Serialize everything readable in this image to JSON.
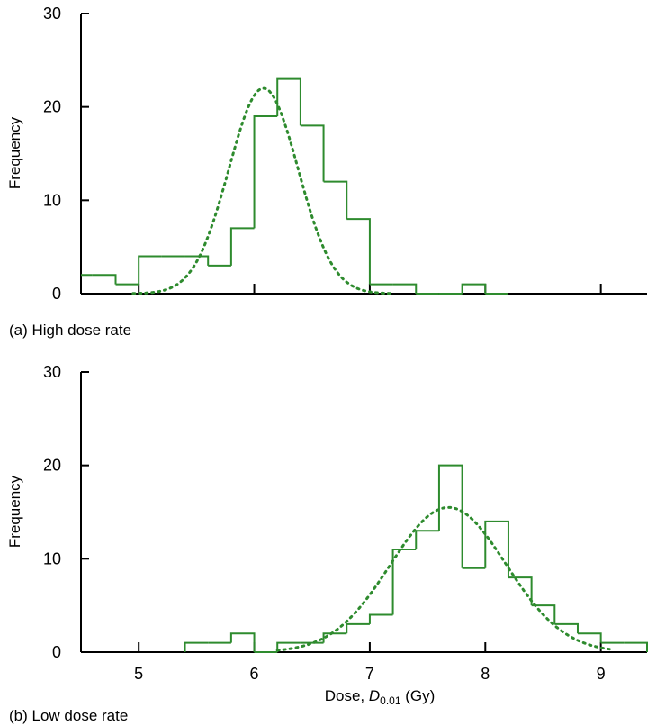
{
  "chart_data": [
    {
      "type": "histogram",
      "caption": "(a) High dose rate",
      "ylabel": "Frequency",
      "xlim": [
        4.5,
        9.4
      ],
      "ylim": [
        0,
        30
      ],
      "xticks": [
        5,
        6,
        7,
        8,
        9
      ],
      "yticks": [
        0,
        10,
        20,
        30
      ],
      "yticklabels": [
        "0",
        "10",
        "20",
        "30"
      ],
      "colors": {
        "histogram": "#2e8b2e",
        "fit": "#2e8b2e"
      },
      "bin_width": 0.2,
      "bins": [
        {
          "start": 4.4,
          "value": 2
        },
        {
          "start": 4.6,
          "value": 2
        },
        {
          "start": 4.8,
          "value": 1
        },
        {
          "start": 5.0,
          "value": 4
        },
        {
          "start": 5.2,
          "value": 4
        },
        {
          "start": 5.4,
          "value": 4
        },
        {
          "start": 5.6,
          "value": 3
        },
        {
          "start": 5.8,
          "value": 7
        },
        {
          "start": 6.0,
          "value": 19
        },
        {
          "start": 6.2,
          "value": 23
        },
        {
          "start": 6.4,
          "value": 18
        },
        {
          "start": 6.6,
          "value": 12
        },
        {
          "start": 6.8,
          "value": 8
        },
        {
          "start": 7.0,
          "value": 1
        },
        {
          "start": 7.2,
          "value": 1
        },
        {
          "start": 7.4,
          "value": 0
        },
        {
          "start": 7.6,
          "value": 0
        },
        {
          "start": 7.8,
          "value": 1
        },
        {
          "start": 8.0,
          "value": 0
        }
      ],
      "fit": {
        "type": "normal",
        "mean": 6.08,
        "sd": 0.3,
        "peak": 22,
        "x_range": [
          4.95,
          7.2
        ]
      }
    },
    {
      "type": "histogram",
      "caption": "(b) Low dose rate",
      "ylabel": "Frequency",
      "xlabel_prefix": "Dose, ",
      "xlabel_var": "D",
      "xlabel_sub": "0.01",
      "xlabel_suffix": " (Gy)",
      "xlim": [
        4.5,
        9.4
      ],
      "ylim": [
        0,
        30
      ],
      "xticks": [
        5,
        6,
        7,
        8,
        9
      ],
      "xticklabels": [
        "5",
        "6",
        "7",
        "8",
        "9"
      ],
      "yticks": [
        0,
        10,
        20,
        30
      ],
      "yticklabels": [
        "0",
        "10",
        "20",
        "30"
      ],
      "colors": {
        "histogram": "#2e8b2e",
        "fit": "#2e8b2e"
      },
      "bin_width": 0.2,
      "bins": [
        {
          "start": 5.4,
          "value": 1
        },
        {
          "start": 5.6,
          "value": 1
        },
        {
          "start": 5.8,
          "value": 2
        },
        {
          "start": 6.0,
          "value": 0
        },
        {
          "start": 6.2,
          "value": 1
        },
        {
          "start": 6.4,
          "value": 1
        },
        {
          "start": 6.6,
          "value": 2
        },
        {
          "start": 6.8,
          "value": 3
        },
        {
          "start": 7.0,
          "value": 4
        },
        {
          "start": 7.2,
          "value": 11
        },
        {
          "start": 7.4,
          "value": 13
        },
        {
          "start": 7.6,
          "value": 20
        },
        {
          "start": 7.8,
          "value": 9
        },
        {
          "start": 8.0,
          "value": 14
        },
        {
          "start": 8.2,
          "value": 8
        },
        {
          "start": 8.4,
          "value": 5
        },
        {
          "start": 8.6,
          "value": 3
        },
        {
          "start": 8.8,
          "value": 2
        },
        {
          "start": 9.0,
          "value": 1
        },
        {
          "start": 9.2,
          "value": 1
        }
      ],
      "fit": {
        "type": "normal",
        "mean": 7.68,
        "sd": 0.5,
        "peak": 15.5,
        "x_range": [
          6.2,
          9.1
        ]
      }
    }
  ]
}
